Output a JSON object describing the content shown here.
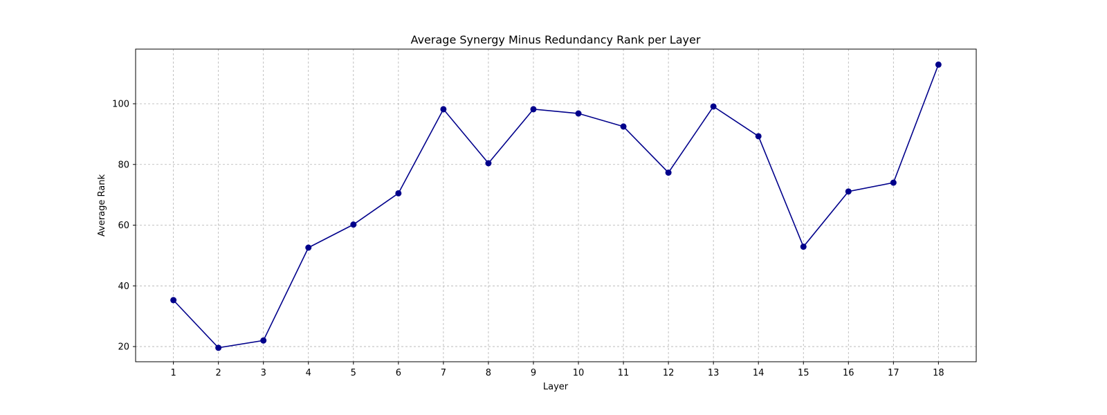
{
  "chart_data": {
    "type": "line",
    "title": "Average Synergy Minus Redundancy Rank per Layer",
    "xlabel": "Layer",
    "ylabel": "Average Rank",
    "x": [
      1,
      2,
      3,
      4,
      5,
      6,
      7,
      8,
      9,
      10,
      11,
      12,
      13,
      14,
      15,
      16,
      17,
      18
    ],
    "xlim": [
      0.16,
      18.84
    ],
    "ylim": [
      15,
      118
    ],
    "yticks": [
      20,
      40,
      60,
      80,
      100
    ],
    "grid": true,
    "series": [
      {
        "name": "Average Synergy Minus Redundancy Rank",
        "color": "#00008b",
        "marker": "circle",
        "values": [
          35.3,
          19.6,
          22.0,
          52.6,
          60.2,
          70.5,
          98.2,
          80.4,
          98.2,
          96.8,
          92.5,
          77.3,
          99.1,
          89.3,
          52.9,
          71.1,
          74.0,
          112.9
        ]
      }
    ]
  }
}
